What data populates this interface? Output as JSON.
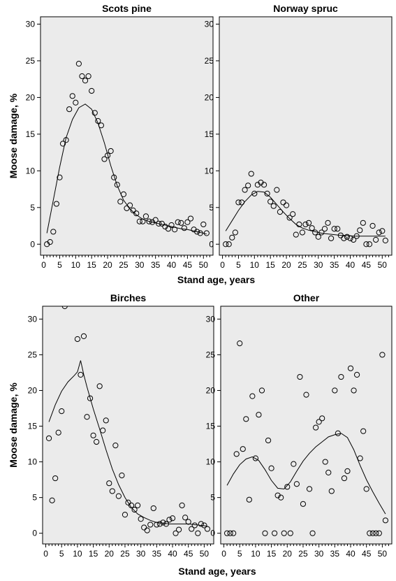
{
  "chart_data": [
    {
      "type": "scatter",
      "title": "Scots pine",
      "xlabel": "",
      "ylabel": "Moose damage, %",
      "xlim": [
        -1,
        53
      ],
      "ylim": [
        -1.5,
        31
      ],
      "xticks": [
        0,
        5,
        10,
        15,
        20,
        25,
        30,
        35,
        40,
        45,
        50
      ],
      "yticks": [
        0,
        5,
        10,
        15,
        20,
        25,
        30
      ],
      "points": [
        [
          1,
          0
        ],
        [
          2,
          0.3
        ],
        [
          3,
          1.7
        ],
        [
          4,
          5.5
        ],
        [
          5,
          9.1
        ],
        [
          6,
          13.7
        ],
        [
          7,
          14.2
        ],
        [
          8,
          18.4
        ],
        [
          9,
          20.2
        ],
        [
          10,
          19.3
        ],
        [
          11,
          24.6
        ],
        [
          12,
          22.9
        ],
        [
          13,
          22.3
        ],
        [
          14,
          22.9
        ],
        [
          15,
          20.9
        ],
        [
          16,
          17.9
        ],
        [
          17,
          16.8
        ],
        [
          18,
          16.2
        ],
        [
          19,
          11.6
        ],
        [
          20,
          12.1
        ],
        [
          21,
          12.7
        ],
        [
          22,
          9.1
        ],
        [
          23,
          8.1
        ],
        [
          24,
          5.8
        ],
        [
          25,
          6.8
        ],
        [
          26,
          4.9
        ],
        [
          27,
          5.3
        ],
        [
          28,
          4.6
        ],
        [
          29,
          4.2
        ],
        [
          30,
          3.1
        ],
        [
          31,
          3.1
        ],
        [
          32,
          3.8
        ],
        [
          33,
          3.1
        ],
        [
          34,
          3.0
        ],
        [
          35,
          3.3
        ],
        [
          36,
          2.8
        ],
        [
          37,
          2.8
        ],
        [
          38,
          2.4
        ],
        [
          39,
          2.1
        ],
        [
          40,
          2.6
        ],
        [
          41,
          2.0
        ],
        [
          42,
          3.0
        ],
        [
          43,
          2.9
        ],
        [
          44,
          2.2
        ],
        [
          45,
          3.0
        ],
        [
          46,
          3.5
        ],
        [
          47,
          2.0
        ],
        [
          48,
          1.7
        ],
        [
          49,
          1.5
        ],
        [
          50,
          2.7
        ],
        [
          51,
          1.5
        ]
      ],
      "fit": [
        [
          1,
          1.5
        ],
        [
          3,
          6
        ],
        [
          5,
          10.5
        ],
        [
          7,
          14.5
        ],
        [
          9,
          17
        ],
        [
          11,
          18.6
        ],
        [
          13,
          19.1
        ],
        [
          15,
          18.4
        ],
        [
          17,
          16.5
        ],
        [
          19,
          13.8
        ],
        [
          21,
          10.7
        ],
        [
          23,
          8
        ],
        [
          25,
          6
        ],
        [
          27,
          4.8
        ],
        [
          29,
          4
        ],
        [
          31,
          3.4
        ],
        [
          33,
          3.1
        ],
        [
          35,
          2.9
        ],
        [
          37,
          2.7
        ],
        [
          39,
          2.5
        ],
        [
          41,
          2.3
        ],
        [
          43,
          2.1
        ],
        [
          45,
          2
        ],
        [
          47,
          1.8
        ],
        [
          49,
          1.6
        ],
        [
          51,
          1.4
        ]
      ]
    },
    {
      "type": "scatter",
      "title": "Norway spruc",
      "xlabel": "",
      "ylabel": "",
      "xlim": [
        -1,
        53
      ],
      "ylim": [
        -1.5,
        31
      ],
      "xticks": [
        0,
        5,
        10,
        15,
        20,
        25,
        30,
        35,
        40,
        45,
        50
      ],
      "yticks": [
        0,
        5,
        10,
        15,
        20,
        25,
        30
      ],
      "points": [
        [
          1,
          0
        ],
        [
          2,
          0
        ],
        [
          3,
          0.9
        ],
        [
          4,
          1.6
        ],
        [
          5,
          5.7
        ],
        [
          6,
          5.7
        ],
        [
          7,
          7.4
        ],
        [
          8,
          8.0
        ],
        [
          9,
          9.6
        ],
        [
          10,
          6.9
        ],
        [
          11,
          8.1
        ],
        [
          12,
          8.4
        ],
        [
          13,
          8.1
        ],
        [
          14,
          6.9
        ],
        [
          15,
          5.8
        ],
        [
          16,
          5.2
        ],
        [
          17,
          7.4
        ],
        [
          18,
          4.4
        ],
        [
          19,
          5.7
        ],
        [
          20,
          5.3
        ],
        [
          21,
          3.6
        ],
        [
          22,
          4.1
        ],
        [
          23,
          1.3
        ],
        [
          24,
          2.7
        ],
        [
          25,
          1.6
        ],
        [
          26,
          2.7
        ],
        [
          27,
          2.9
        ],
        [
          28,
          2.2
        ],
        [
          29,
          1.6
        ],
        [
          30,
          1.0
        ],
        [
          31,
          1.6
        ],
        [
          32,
          2.1
        ],
        [
          33,
          2.9
        ],
        [
          34,
          0.8
        ],
        [
          35,
          2.1
        ],
        [
          36,
          2.1
        ],
        [
          37,
          1.2
        ],
        [
          38,
          0.8
        ],
        [
          39,
          1.0
        ],
        [
          40,
          0.8
        ],
        [
          41,
          0.6
        ],
        [
          42,
          1.1
        ],
        [
          43,
          1.9
        ],
        [
          44,
          2.9
        ],
        [
          45,
          0
        ],
        [
          46,
          0
        ],
        [
          47,
          2.5
        ],
        [
          48,
          0.6
        ],
        [
          49,
          1.6
        ],
        [
          50,
          1.8
        ],
        [
          51,
          0.5
        ]
      ],
      "fit": [
        [
          1,
          1.8
        ],
        [
          3,
          3.2
        ],
        [
          5,
          4.6
        ],
        [
          7,
          5.8
        ],
        [
          9,
          6.7
        ],
        [
          11,
          7.2
        ],
        [
          13,
          7.1
        ],
        [
          15,
          6.4
        ],
        [
          17,
          5.4
        ],
        [
          19,
          4.4
        ],
        [
          21,
          3.5
        ],
        [
          23,
          2.7
        ],
        [
          25,
          2.2
        ],
        [
          27,
          1.9
        ],
        [
          29,
          1.7
        ],
        [
          31,
          1.5
        ],
        [
          33,
          1.4
        ],
        [
          35,
          1.3
        ],
        [
          37,
          1.2
        ],
        [
          39,
          1.2
        ],
        [
          41,
          1.1
        ],
        [
          43,
          1.1
        ],
        [
          45,
          1.1
        ],
        [
          47,
          1.1
        ],
        [
          49,
          1.1
        ],
        [
          51,
          1.1
        ]
      ]
    },
    {
      "type": "scatter",
      "title": "Birches",
      "xlabel": "Stand age, years",
      "ylabel": "Moose damage, %",
      "xlim": [
        -1,
        53
      ],
      "ylim": [
        -1.5,
        31.8
      ],
      "xticks": [
        0,
        5,
        10,
        15,
        20,
        25,
        30,
        35,
        40,
        45,
        50
      ],
      "yticks": [
        0,
        5,
        10,
        15,
        20,
        25,
        30
      ],
      "points": [
        [
          1,
          13.3
        ],
        [
          2,
          4.6
        ],
        [
          3,
          7.7
        ],
        [
          4,
          14.1
        ],
        [
          5,
          17.1
        ],
        [
          6,
          31.8
        ],
        [
          10,
          27.2
        ],
        [
          11,
          22.2
        ],
        [
          12,
          27.6
        ],
        [
          13,
          16.3
        ],
        [
          14,
          18.9
        ],
        [
          15,
          13.7
        ],
        [
          16,
          12.8
        ],
        [
          17,
          20.6
        ],
        [
          18,
          14.4
        ],
        [
          19,
          15.8
        ],
        [
          20,
          7.0
        ],
        [
          21,
          5.9
        ],
        [
          22,
          12.3
        ],
        [
          23,
          5.2
        ],
        [
          24,
          8.1
        ],
        [
          25,
          2.6
        ],
        [
          26,
          4.3
        ],
        [
          27,
          3.9
        ],
        [
          28,
          3.3
        ],
        [
          29,
          3.9
        ],
        [
          30,
          2.0
        ],
        [
          31,
          0.8
        ],
        [
          32,
          0.4
        ],
        [
          33,
          1.2
        ],
        [
          34,
          3.5
        ],
        [
          35,
          1.2
        ],
        [
          36,
          1.3
        ],
        [
          37,
          1.5
        ],
        [
          38,
          1.3
        ],
        [
          39,
          1.9
        ],
        [
          40,
          2.1
        ],
        [
          41,
          0
        ],
        [
          42,
          0.5
        ],
        [
          43,
          3.9
        ],
        [
          44,
          2.2
        ],
        [
          45,
          1.6
        ],
        [
          46,
          0.6
        ],
        [
          47,
          1.1
        ],
        [
          48,
          0
        ],
        [
          49,
          1.3
        ],
        [
          50,
          1.1
        ],
        [
          51,
          0.6
        ]
      ],
      "fit": [
        [
          1,
          15.6
        ],
        [
          3,
          18
        ],
        [
          5,
          19.9
        ],
        [
          7,
          21.2
        ],
        [
          9,
          22.1
        ],
        [
          10,
          22.6
        ],
        [
          11,
          24.2
        ],
        [
          12,
          22.2
        ],
        [
          13,
          20.5
        ],
        [
          15,
          17.4
        ],
        [
          17,
          14.6
        ],
        [
          19,
          11.7
        ],
        [
          21,
          9
        ],
        [
          23,
          6.8
        ],
        [
          25,
          5
        ],
        [
          27,
          3.6
        ],
        [
          29,
          2.7
        ],
        [
          31,
          2.2
        ],
        [
          33,
          1.8
        ],
        [
          35,
          1.5
        ],
        [
          37,
          1.4
        ],
        [
          39,
          1.3
        ],
        [
          41,
          1.3
        ],
        [
          43,
          1.3
        ],
        [
          45,
          1.3
        ],
        [
          47,
          1.2
        ],
        [
          49,
          1.1
        ],
        [
          51,
          1
        ]
      ]
    },
    {
      "type": "scatter",
      "title": "Other",
      "xlabel": "Stand age, years",
      "ylabel": "",
      "xlim": [
        -1,
        53
      ],
      "ylim": [
        -1.5,
        31.8
      ],
      "xticks": [
        0,
        5,
        10,
        15,
        20,
        25,
        30,
        35,
        40,
        45,
        50
      ],
      "yticks": [
        0,
        5,
        10,
        15,
        20,
        25,
        30
      ],
      "points": [
        [
          1,
          0
        ],
        [
          2,
          0
        ],
        [
          3,
          0
        ],
        [
          4,
          11.1
        ],
        [
          5,
          26.6
        ],
        [
          6,
          11.8
        ],
        [
          7,
          16.0
        ],
        [
          8,
          4.7
        ],
        [
          9,
          19.2
        ],
        [
          10,
          10.5
        ],
        [
          11,
          16.6
        ],
        [
          12,
          20.0
        ],
        [
          13,
          0
        ],
        [
          14,
          13.0
        ],
        [
          15,
          9.1
        ],
        [
          16,
          0
        ],
        [
          17,
          5.3
        ],
        [
          18,
          5.0
        ],
        [
          19,
          0
        ],
        [
          20,
          6.5
        ],
        [
          21,
          0
        ],
        [
          22,
          9.7
        ],
        [
          23,
          6.9
        ],
        [
          24,
          21.9
        ],
        [
          25,
          4.1
        ],
        [
          26,
          19.4
        ],
        [
          27,
          6.2
        ],
        [
          28,
          0
        ],
        [
          29,
          14.8
        ],
        [
          30,
          15.6
        ],
        [
          31,
          16.1
        ],
        [
          32,
          10.0
        ],
        [
          33,
          8.5
        ],
        [
          34,
          5.9
        ],
        [
          35,
          20.0
        ],
        [
          36,
          14.0
        ],
        [
          37,
          21.9
        ],
        [
          38,
          7.7
        ],
        [
          39,
          8.7
        ],
        [
          40,
          23.1
        ],
        [
          41,
          20.0
        ],
        [
          42,
          22.2
        ],
        [
          43,
          10.5
        ],
        [
          44,
          14.3
        ],
        [
          45,
          6.2
        ],
        [
          46,
          0
        ],
        [
          47,
          0
        ],
        [
          48,
          0
        ],
        [
          49,
          0
        ],
        [
          50,
          25.0
        ],
        [
          51,
          1.8
        ]
      ],
      "fit": [
        [
          1,
          6.7
        ],
        [
          3,
          8.3
        ],
        [
          5,
          9.6
        ],
        [
          7,
          10.4
        ],
        [
          9,
          10.7
        ],
        [
          11,
          10.2
        ],
        [
          13,
          8.9
        ],
        [
          15,
          7.4
        ],
        [
          17,
          6.3
        ],
        [
          19,
          6.2
        ],
        [
          21,
          7.2
        ],
        [
          23,
          8.7
        ],
        [
          25,
          10.1
        ],
        [
          27,
          11.2
        ],
        [
          29,
          12.1
        ],
        [
          31,
          12.8
        ],
        [
          33,
          13.5
        ],
        [
          35,
          13.8
        ],
        [
          37,
          14.0
        ],
        [
          39,
          13.4
        ],
        [
          41,
          11.7
        ],
        [
          43,
          9.5
        ],
        [
          45,
          7.5
        ],
        [
          47,
          5.8
        ],
        [
          49,
          4.2
        ],
        [
          51,
          2.7
        ]
      ]
    }
  ]
}
